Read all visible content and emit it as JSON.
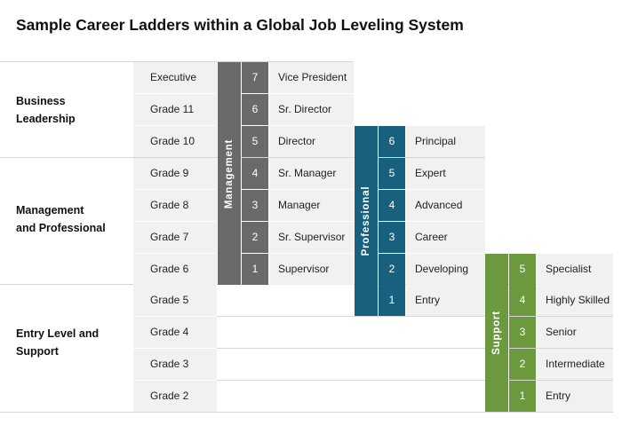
{
  "title": "Sample Career Ladders within a Global Job Leveling System",
  "groups": [
    {
      "line1": "Business",
      "line2": "Leadership"
    },
    {
      "line1": "Management",
      "line2": "and Professional"
    },
    {
      "line1": "Entry Level and",
      "line2": "Support"
    }
  ],
  "grades": [
    "Executive",
    "Grade 11",
    "Grade 10",
    "Grade 9",
    "Grade 8",
    "Grade 7",
    "Grade 6",
    "Grade 5",
    "Grade 4",
    "Grade 3",
    "Grade 2"
  ],
  "ladders": {
    "management": {
      "label": "Management",
      "color": "#6a6a6a",
      "levels": [
        {
          "num": "7",
          "title": "Vice President"
        },
        {
          "num": "6",
          "title": "Sr. Director"
        },
        {
          "num": "5",
          "title": "Director"
        },
        {
          "num": "4",
          "title": "Sr. Manager"
        },
        {
          "num": "3",
          "title": "Manager"
        },
        {
          "num": "2",
          "title": "Sr. Supervisor"
        },
        {
          "num": "1",
          "title": "Supervisor"
        }
      ]
    },
    "professional": {
      "label": "Professional",
      "color": "#17607e",
      "levels": [
        {
          "num": "6",
          "title": "Principal"
        },
        {
          "num": "5",
          "title": "Expert"
        },
        {
          "num": "4",
          "title": "Advanced"
        },
        {
          "num": "3",
          "title": "Career"
        },
        {
          "num": "2",
          "title": "Developing"
        },
        {
          "num": "1",
          "title": "Entry"
        }
      ]
    },
    "support": {
      "label": "Support",
      "color": "#6b9a3e",
      "levels": [
        {
          "num": "5",
          "title": "Specialist"
        },
        {
          "num": "4",
          "title": "Highly Skilled"
        },
        {
          "num": "3",
          "title": "Senior"
        },
        {
          "num": "2",
          "title": "Intermediate"
        },
        {
          "num": "1",
          "title": "Entry"
        }
      ]
    }
  }
}
